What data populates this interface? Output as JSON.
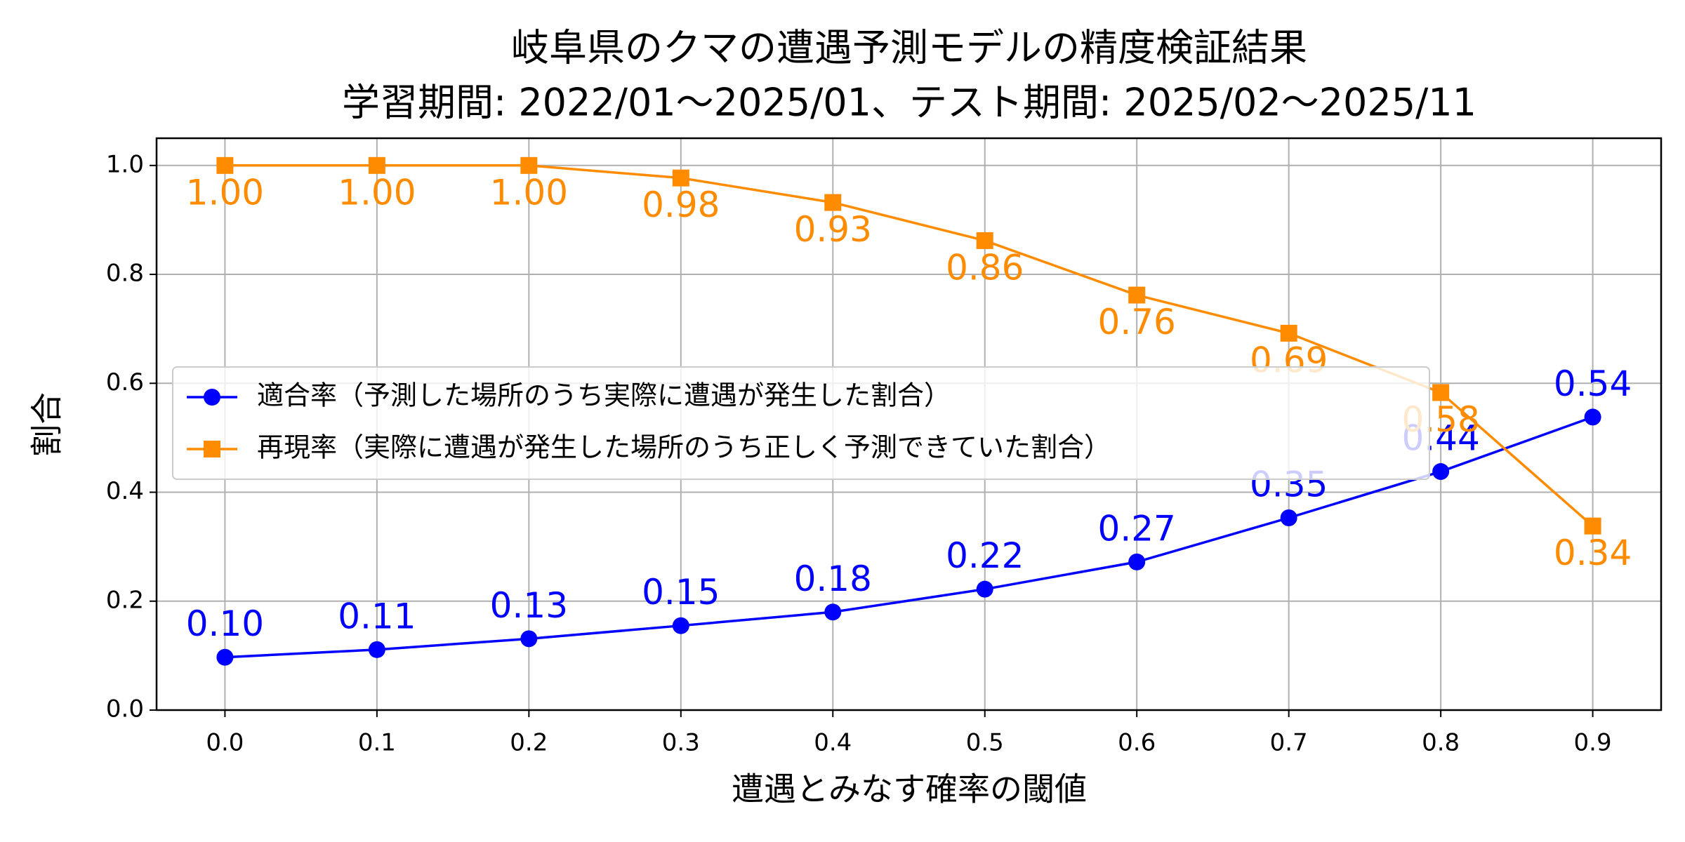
{
  "chart_data": {
    "type": "line",
    "title": "岐阜県のクマの遭遇予測モデルの精度検証結果",
    "subtitle": "学習期間: 2022/01〜2025/01、テスト期間: 2025/02〜2025/11",
    "x_label": "遭遇とみなす確率の閾値",
    "y_label": "割合",
    "x": [
      0.0,
      0.1,
      0.2,
      0.3,
      0.4,
      0.5,
      0.6,
      0.7,
      0.8,
      0.9
    ],
    "series": [
      {
        "name": "適合率（予測した場所のうち実際に遭遇が発生した割合）",
        "color": "#0000ff",
        "marker": "circle",
        "values": [
          0.097,
          0.111,
          0.131,
          0.155,
          0.18,
          0.222,
          0.272,
          0.353,
          0.438,
          0.538
        ],
        "value_labels": [
          "0.10",
          "0.11",
          "0.13",
          "0.15",
          "0.18",
          "0.22",
          "0.27",
          "0.35",
          "0.44",
          "0.54"
        ]
      },
      {
        "name": "再現率（実際に遭遇が発生した場所のうち正しく予測できていた割合）",
        "color": "#ff8c00",
        "marker": "square",
        "values": [
          1.0,
          1.0,
          1.0,
          0.977,
          0.932,
          0.862,
          0.762,
          0.692,
          0.583,
          0.338
        ],
        "value_labels": [
          "1.00",
          "1.00",
          "1.00",
          "0.98",
          "0.93",
          "0.86",
          "0.76",
          "0.69",
          "0.58",
          "0.34"
        ]
      }
    ],
    "xlim": [
      -0.045,
      0.945
    ],
    "ylim": [
      0,
      1.05
    ],
    "xticks": [
      {
        "value": 0,
        "label": "0.0"
      },
      {
        "value": 0.1,
        "label": "0.1"
      },
      {
        "value": 0.2,
        "label": "0.2"
      },
      {
        "value": 0.3,
        "label": "0.3"
      },
      {
        "value": 0.4,
        "label": "0.4"
      },
      {
        "value": 0.5,
        "label": "0.5"
      },
      {
        "value": 0.6,
        "label": "0.6"
      },
      {
        "value": 0.7,
        "label": "0.7"
      },
      {
        "value": 0.8,
        "label": "0.8"
      },
      {
        "value": 0.9,
        "label": "0.9"
      }
    ],
    "yticks": [
      {
        "value": 0,
        "label": "0.0"
      },
      {
        "value": 0.2,
        "label": "0.2"
      },
      {
        "value": 0.4,
        "label": "0.4"
      },
      {
        "value": 0.6,
        "label": "0.6"
      },
      {
        "value": 0.8,
        "label": "0.8"
      },
      {
        "value": 1.0,
        "label": "1.0"
      }
    ],
    "grid": true,
    "legend": "center left"
  }
}
